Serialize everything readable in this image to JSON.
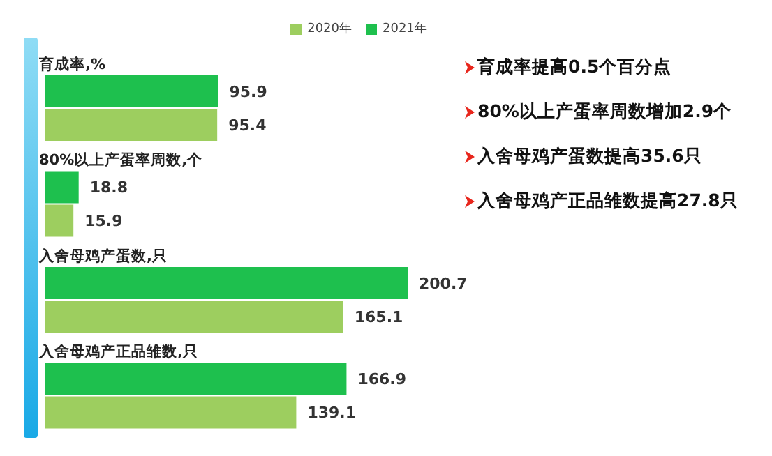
{
  "chart_data": {
    "type": "bar",
    "orientation": "horizontal",
    "categories": [
      "育成率,%",
      "80%以上产蛋率周数,个",
      "入舍母鸡产蛋数,只",
      "入舍母鸡产正品雏数,只"
    ],
    "series": [
      {
        "name": "2021年",
        "color": "#1ec04e",
        "values": [
          95.9,
          18.8,
          200.7,
          166.9
        ]
      },
      {
        "name": "2020年",
        "color": "#9dce5f",
        "values": [
          95.4,
          15.9,
          165.1,
          139.1
        ]
      }
    ],
    "data_labels": true,
    "legend": "top",
    "grid": false,
    "annotations": [
      "育成率提高0.5个百分点",
      "80%以上产蛋率周数增加2.9个",
      "入舍母鸡产蛋数提高35.6只",
      "入舍母鸡产正品雏数提高27.8只"
    ]
  }
}
